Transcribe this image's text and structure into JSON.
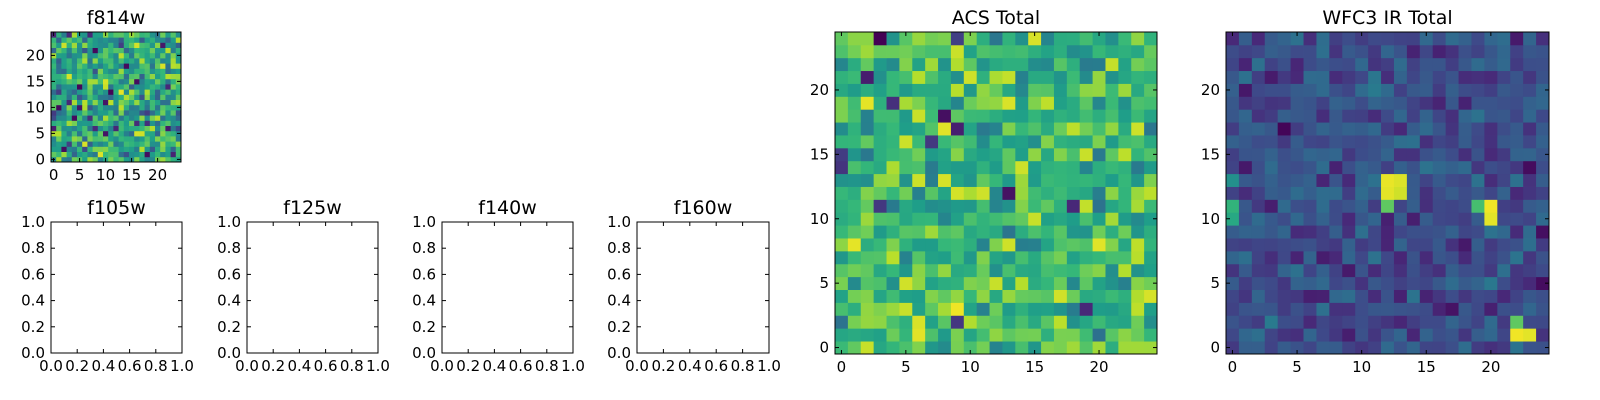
{
  "chart_data": [
    {
      "id": "f814w",
      "type": "heatmap",
      "title": "f814w",
      "grid_size": 25,
      "xlim": [
        -0.5,
        24.5
      ],
      "ylim": [
        -0.5,
        24.5
      ],
      "xticks": [
        0,
        5,
        10,
        15,
        20
      ],
      "yticks": [
        0,
        5,
        10,
        15,
        20
      ],
      "colormap": "viridis",
      "pixel_values_note": "random-noise image; individual pixel values not legible",
      "seed": 814,
      "value_range": [
        0.2,
        1.0
      ]
    },
    {
      "id": "f105w",
      "type": "empty",
      "title": "f105w",
      "xlim": [
        0,
        1
      ],
      "ylim": [
        0,
        1
      ],
      "xticks": [
        "0.0",
        "0.2",
        "0.4",
        "0.6",
        "0.8",
        "1.0"
      ],
      "yticks": [
        "0.0",
        "0.2",
        "0.4",
        "0.6",
        "0.8",
        "1.0"
      ]
    },
    {
      "id": "f125w",
      "type": "empty",
      "title": "f125w",
      "xlim": [
        0,
        1
      ],
      "ylim": [
        0,
        1
      ],
      "xticks": [
        "0.0",
        "0.2",
        "0.4",
        "0.6",
        "0.8",
        "1.0"
      ],
      "yticks": [
        "0.0",
        "0.2",
        "0.4",
        "0.6",
        "0.8",
        "1.0"
      ]
    },
    {
      "id": "f140w",
      "type": "empty",
      "title": "f140w",
      "xlim": [
        0,
        1
      ],
      "ylim": [
        0,
        1
      ],
      "xticks": [
        "0.0",
        "0.2",
        "0.4",
        "0.6",
        "0.8",
        "1.0"
      ],
      "yticks": [
        "0.0",
        "0.2",
        "0.4",
        "0.6",
        "0.8",
        "1.0"
      ]
    },
    {
      "id": "f160w",
      "type": "empty",
      "title": "f160w",
      "xlim": [
        0,
        1
      ],
      "ylim": [
        0,
        1
      ],
      "xticks": [
        "0.0",
        "0.2",
        "0.4",
        "0.6",
        "0.8",
        "1.0"
      ],
      "yticks": [
        "0.0",
        "0.2",
        "0.4",
        "0.6",
        "0.8",
        "1.0"
      ]
    },
    {
      "id": "acs-total",
      "type": "heatmap",
      "title": "ACS Total",
      "grid_size": 25,
      "xlim": [
        -0.5,
        24.5
      ],
      "ylim": [
        -0.5,
        24.5
      ],
      "xticks": [
        0,
        5,
        10,
        15,
        20
      ],
      "yticks": [
        0,
        5,
        10,
        15,
        20
      ],
      "colormap": "viridis",
      "pixel_values_note": "random-noise image; individual pixel values not legible",
      "seed": 4242,
      "value_range": [
        0.35,
        1.0
      ]
    },
    {
      "id": "wfc3-ir-total",
      "type": "heatmap",
      "title": "WFC3 IR Total",
      "grid_size": 25,
      "xlim": [
        -0.5,
        24.5
      ],
      "ylim": [
        -0.5,
        24.5
      ],
      "xticks": [
        0,
        5,
        10,
        15,
        20
      ],
      "yticks": [
        0,
        5,
        10,
        15,
        20
      ],
      "colormap": "viridis",
      "pixel_values_note": "mostly dark noise with a few bright pixels",
      "seed": 3031,
      "value_range": [
        0.05,
        0.42
      ],
      "bright_pixels": [
        {
          "x": 12,
          "y": 13,
          "v": 0.97
        },
        {
          "x": 13,
          "y": 13,
          "v": 0.95
        },
        {
          "x": 12,
          "y": 12,
          "v": 0.96
        },
        {
          "x": 13,
          "y": 12,
          "v": 0.93
        },
        {
          "x": 12,
          "y": 11,
          "v": 0.75
        },
        {
          "x": 20,
          "y": 11,
          "v": 0.98
        },
        {
          "x": 20,
          "y": 10,
          "v": 0.96
        },
        {
          "x": 19,
          "y": 11,
          "v": 0.7
        },
        {
          "x": 22,
          "y": 2,
          "v": 0.75
        },
        {
          "x": 22,
          "y": 1,
          "v": 0.98
        },
        {
          "x": 23,
          "y": 1,
          "v": 0.96
        },
        {
          "x": 0,
          "y": 11,
          "v": 0.65
        },
        {
          "x": 0,
          "y": 10,
          "v": 0.6
        },
        {
          "x": 0,
          "y": 13,
          "v": 0.5
        }
      ]
    }
  ]
}
